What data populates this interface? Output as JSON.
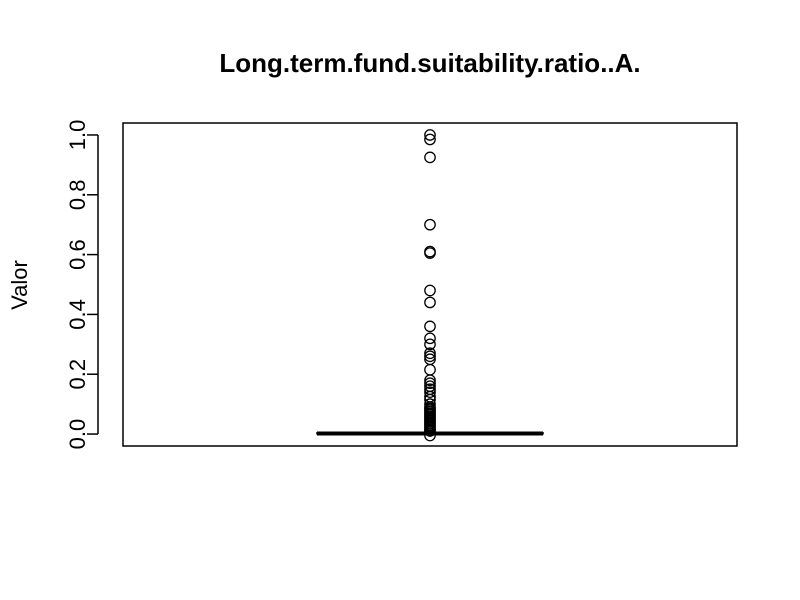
{
  "chart_data": {
    "type": "boxplot",
    "title": "Long.term.fund.suitability.ratio..A.",
    "xlabel": "",
    "ylabel": "Valor",
    "ylim": [
      -0.04,
      1.04
    ],
    "yticks": [
      0.0,
      0.2,
      0.4,
      0.6,
      0.8,
      1.0
    ],
    "ytick_labels": [
      "0.0",
      "0.2",
      "0.4",
      "0.6",
      "0.8",
      "1.0"
    ],
    "box": {
      "q1": 0.001,
      "median": 0.002,
      "q3": 0.004,
      "whisker_low": 0.0,
      "whisker_high": 0.008
    },
    "outliers": [
      1.0,
      0.985,
      0.925,
      0.7,
      0.61,
      0.605,
      0.48,
      0.44,
      0.36,
      0.32,
      0.3,
      0.27,
      0.26,
      0.25,
      0.215,
      0.18,
      0.17,
      0.16,
      0.15,
      0.14,
      0.125,
      0.115,
      0.1,
      0.09,
      0.085,
      0.08,
      0.075,
      0.07,
      0.065,
      0.06,
      0.055,
      0.05,
      0.045,
      0.04,
      0.035,
      0.03,
      0.025,
      0.02,
      0.015,
      0.012,
      0.01,
      -0.005
    ],
    "grid": false,
    "legend": "none"
  }
}
